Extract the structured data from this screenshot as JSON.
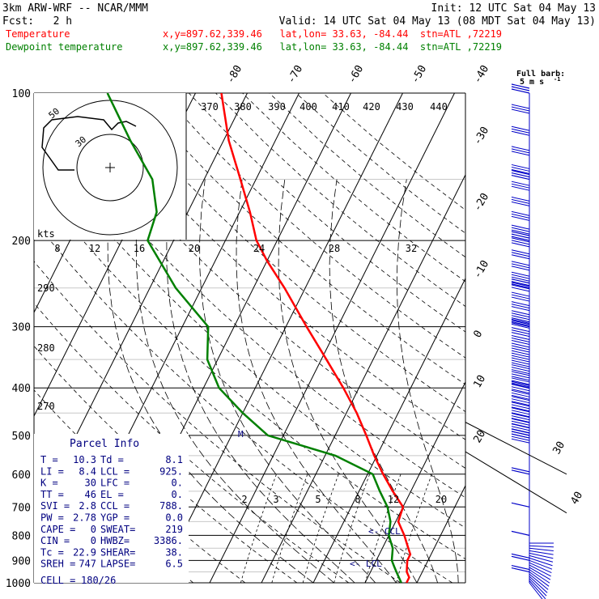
{
  "header": {
    "model": "3km ARW-WRF -- NCAR/MMM",
    "init": "Init: 12 UTC Sat 04 May 13",
    "fcst": "Fcst:   2 h",
    "valid": "Valid: 14 UTC Sat 04 May 13 (08 MDT Sat 04 May 13)",
    "temp_label": "Temperature",
    "temp_info": "x,y=897.62,339.46   lat,lon= 33.63, -84.44  stn=ATL ,72219",
    "dew_label": "Dewpoint temperature",
    "dew_info": "x,y=897.62,339.46   lat,lon= 33.63, -84.44  stn=ATL ,72219"
  },
  "colors": {
    "temperature": "#ff0000",
    "dewpoint": "#008000",
    "wind_barbs": "#0000c8",
    "hodograph": "#000000"
  },
  "barb_legend": {
    "line1": "Full barb:",
    "line2": "5 m s",
    "exp": "-1"
  },
  "chart_data": {
    "type": "skew-t",
    "pressure_levels": [
      "100",
      "200",
      "300",
      "400",
      "500",
      "600",
      "700",
      "800",
      "900",
      "1000"
    ],
    "skewed_temp_labels": [
      "-80",
      "-70",
      "-60",
      "-50",
      "-40",
      "-30",
      "-20",
      "-10",
      "0",
      "10",
      "20",
      "30",
      "40"
    ],
    "theta_labels_top": [
      "370",
      "380",
      "390",
      "400",
      "410",
      "420",
      "430",
      "440"
    ],
    "theta_labels_left": [
      "290",
      "280",
      "270"
    ],
    "mixing_ratio_labels": [
      "2",
      "3",
      "5",
      "8",
      "12",
      "20"
    ],
    "temperature": {
      "name": "Temperature",
      "points": [
        [
          1000,
          18
        ],
        [
          975,
          18
        ],
        [
          950,
          17
        ],
        [
          925,
          16.5
        ],
        [
          900,
          16
        ],
        [
          875,
          16
        ],
        [
          850,
          15
        ],
        [
          800,
          13
        ],
        [
          750,
          10.5
        ],
        [
          700,
          10
        ],
        [
          650,
          6.5
        ],
        [
          600,
          3
        ],
        [
          550,
          -0.5
        ],
        [
          500,
          -4
        ],
        [
          450,
          -8
        ],
        [
          400,
          -13
        ],
        [
          350,
          -19
        ],
        [
          300,
          -26
        ],
        [
          250,
          -34
        ],
        [
          220,
          -40
        ],
        [
          200,
          -44
        ],
        [
          175,
          -48
        ],
        [
          150,
          -53
        ],
        [
          125,
          -59
        ],
        [
          100,
          -65
        ]
      ]
    },
    "dewpoint": {
      "name": "Dewpoint temperature",
      "points": [
        [
          1000,
          17
        ],
        [
          950,
          15
        ],
        [
          925,
          14
        ],
        [
          900,
          13
        ],
        [
          850,
          12
        ],
        [
          800,
          10
        ],
        [
          750,
          9
        ],
        [
          700,
          7
        ],
        [
          650,
          4
        ],
        [
          600,
          1
        ],
        [
          550,
          -8
        ],
        [
          500,
          -23
        ],
        [
          450,
          -30
        ],
        [
          400,
          -37
        ],
        [
          350,
          -42
        ],
        [
          300,
          -45
        ],
        [
          250,
          -55
        ],
        [
          200,
          -65
        ],
        [
          175,
          -66
        ],
        [
          150,
          -70
        ],
        [
          125,
          -78
        ],
        [
          100,
          -87
        ]
      ]
    },
    "annotations": {
      "lcl": "LCL",
      "ccl": "CCL",
      "el": "M"
    },
    "hodograph": {
      "unit": "kts",
      "ring_labels": [
        "50",
        "30"
      ],
      "speed_axis": [
        "8",
        "12",
        "16",
        "20",
        "24",
        "28",
        "32"
      ]
    },
    "wind_barbs": [
      {
        "p": 100,
        "speed_kts": 30,
        "dir": 250
      },
      {
        "p": 150,
        "speed_kts": 30,
        "dir": 250
      },
      {
        "p": 200,
        "speed_kts": 30,
        "dir": 250
      },
      {
        "p": 250,
        "speed_kts": 30,
        "dir": 250
      },
      {
        "p": 300,
        "speed_kts": 25,
        "dir": 250
      },
      {
        "p": 400,
        "speed_kts": 20,
        "dir": 260
      },
      {
        "p": 500,
        "speed_kts": 20,
        "dir": 260
      },
      {
        "p": 600,
        "speed_kts": 15,
        "dir": 240
      },
      {
        "p": 700,
        "speed_kts": 10,
        "dir": 220
      },
      {
        "p": 800,
        "speed_kts": 10,
        "dir": 200
      },
      {
        "p": 900,
        "speed_kts": 15,
        "dir": 180
      },
      {
        "p": 950,
        "speed_kts": 20,
        "dir": 170
      }
    ]
  },
  "parcel_info": {
    "title": "Parcel Info",
    "rows": [
      [
        "T  =",
        "10.3",
        "Td =",
        "8.1"
      ],
      [
        "LI =",
        "8.4",
        "LCL =",
        "925."
      ],
      [
        "K  =",
        "30",
        "LFC =",
        "0."
      ],
      [
        "TT =",
        "46",
        "EL  =",
        "0."
      ],
      [
        "SVI =",
        "2.8",
        "CCL =",
        "788."
      ],
      [
        "PW =",
        "2.78",
        "YGP =",
        "0.0"
      ],
      [
        "CAPE =",
        "0",
        "SWEAT=",
        "219"
      ],
      [
        "CIN  =",
        "0",
        "HWBZ=",
        "3386."
      ],
      [
        "Tc   =",
        "22.9",
        "SHEAR=",
        "38."
      ],
      [
        "SREH =",
        "747",
        "LAPSE=",
        "6.5"
      ]
    ],
    "cell_label": "CELL =",
    "cell_value": "180/26"
  }
}
